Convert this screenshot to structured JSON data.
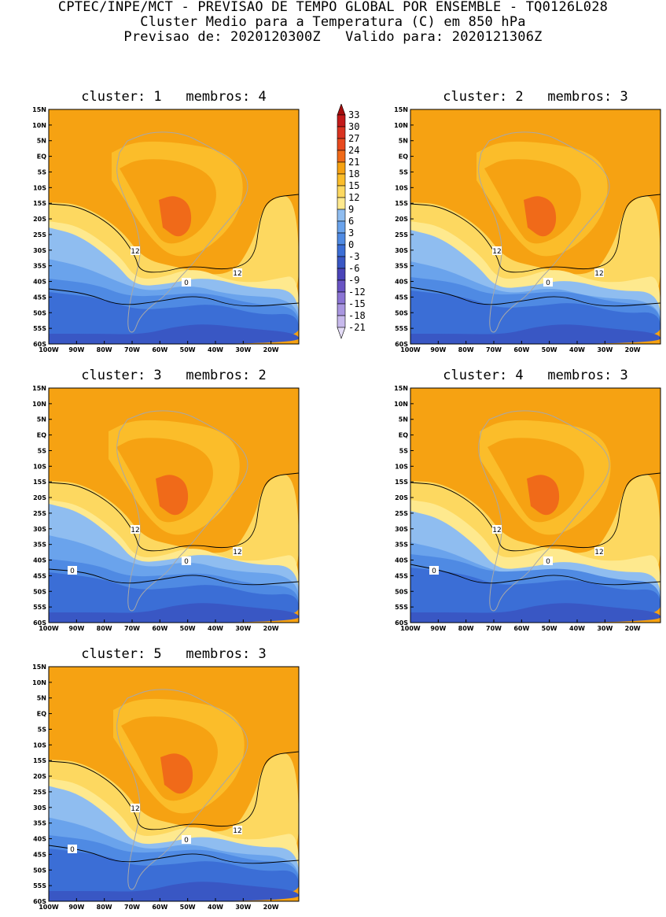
{
  "header": {
    "line1": "CPTEC/INPE/MCT - PREVISAO DE TEMPO GLOBAL POR ENSEMBLE - TQ0126L028",
    "line2": "Cluster Medio para a Temperatura (C) em 850 hPa",
    "line3": "Previsao de: 2020120300Z   Valido para: 2020121306Z"
  },
  "axes": {
    "lat_labels": [
      "15N",
      "10N",
      "5N",
      "EQ",
      "5S",
      "10S",
      "15S",
      "20S",
      "25S",
      "30S",
      "35S",
      "40S",
      "45S",
      "50S",
      "55S",
      "60S"
    ],
    "lon_labels": [
      "100W",
      "90W",
      "80W",
      "70W",
      "60W",
      "50W",
      "40W",
      "30W",
      "20W"
    ]
  },
  "panels": [
    {
      "title": "cluster: 1   membros: 4",
      "contour12_label": "12",
      "contour12_label2": "12",
      "contour0_label": "0",
      "contour0_label2": ""
    },
    {
      "title": "cluster: 2   membros: 3",
      "contour12_label": "12",
      "contour12_label2": "12",
      "contour0_label": "0",
      "contour0_label2": ""
    },
    {
      "title": "cluster: 3   membros: 2",
      "contour12_label": "12",
      "contour12_label2": "12",
      "contour0_label": "0",
      "contour0_label2": "0"
    },
    {
      "title": "cluster: 4   membros: 3",
      "contour12_label": "12",
      "contour12_label2": "12",
      "contour0_label": "0",
      "contour0_label2": "0"
    },
    {
      "title": "cluster: 5   membros: 3",
      "contour12_label": "12",
      "contour12_label2": "12",
      "contour0_label": "0",
      "contour0_label2": "0"
    }
  ],
  "colorbar": {
    "levels": [
      "33",
      "30",
      "27",
      "24",
      "21",
      "18",
      "15",
      "12",
      "9",
      "6",
      "3",
      "0",
      "-3",
      "-6",
      "-9",
      "-12",
      "-15",
      "-18",
      "-21"
    ],
    "colors": [
      "#a50d0d",
      "#c31a1a",
      "#d93320",
      "#e8491e",
      "#f06a19",
      "#f6a212",
      "#fbbd2a",
      "#fdd860",
      "#fee98e",
      "#8fbdf0",
      "#6aa3ec",
      "#4f8ae3",
      "#3b6ed6",
      "#3957c4",
      "#4a44b8",
      "#6954c4",
      "#8b74d4",
      "#a996e0",
      "#c7b9ec",
      "#e4dcf6"
    ],
    "accent_warm": "#f6a212",
    "accent_cold": "#3b6ed6"
  }
}
